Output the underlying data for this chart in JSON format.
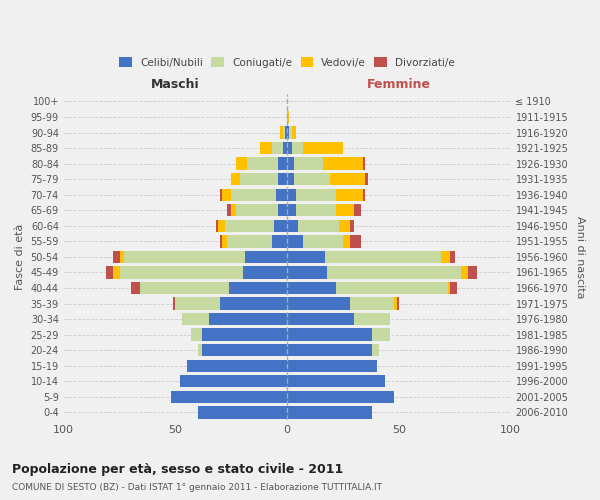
{
  "age_groups": [
    "0-4",
    "5-9",
    "10-14",
    "15-19",
    "20-24",
    "25-29",
    "30-34",
    "35-39",
    "40-44",
    "45-49",
    "50-54",
    "55-59",
    "60-64",
    "65-69",
    "70-74",
    "75-79",
    "80-84",
    "85-89",
    "90-94",
    "95-99",
    "100+"
  ],
  "birth_years": [
    "2006-2010",
    "2001-2005",
    "1996-2000",
    "1991-1995",
    "1986-1990",
    "1981-1985",
    "1976-1980",
    "1971-1975",
    "1966-1970",
    "1961-1965",
    "1956-1960",
    "1951-1955",
    "1946-1950",
    "1941-1945",
    "1936-1940",
    "1931-1935",
    "1926-1930",
    "1921-1925",
    "1916-1920",
    "1911-1915",
    "≤ 1910"
  ],
  "maschi": {
    "celibi": [
      40,
      52,
      48,
      45,
      38,
      38,
      35,
      30,
      26,
      20,
      19,
      7,
      6,
      4,
      5,
      4,
      4,
      2,
      1,
      0,
      0
    ],
    "coniugati": [
      0,
      0,
      0,
      0,
      2,
      5,
      12,
      20,
      40,
      55,
      54,
      20,
      22,
      19,
      20,
      17,
      14,
      5,
      1,
      0,
      0
    ],
    "vedovi": [
      0,
      0,
      0,
      0,
      0,
      0,
      0,
      0,
      0,
      3,
      2,
      2,
      3,
      2,
      4,
      4,
      5,
      5,
      1,
      0,
      0
    ],
    "divorziati": [
      0,
      0,
      0,
      0,
      0,
      0,
      0,
      1,
      4,
      3,
      3,
      1,
      1,
      2,
      1,
      0,
      0,
      0,
      0,
      0,
      0
    ]
  },
  "femmine": {
    "nubili": [
      38,
      48,
      44,
      40,
      38,
      38,
      30,
      28,
      22,
      18,
      17,
      7,
      5,
      4,
      4,
      3,
      3,
      2,
      1,
      0,
      0
    ],
    "coniugate": [
      0,
      0,
      0,
      0,
      3,
      8,
      16,
      20,
      50,
      60,
      52,
      18,
      18,
      18,
      18,
      16,
      13,
      5,
      1,
      0,
      0
    ],
    "vedove": [
      0,
      0,
      0,
      0,
      0,
      0,
      0,
      1,
      1,
      3,
      4,
      3,
      5,
      8,
      12,
      16,
      18,
      18,
      2,
      1,
      0
    ],
    "divorziate": [
      0,
      0,
      0,
      0,
      0,
      0,
      0,
      1,
      3,
      4,
      2,
      5,
      2,
      3,
      1,
      1,
      1,
      0,
      0,
      0,
      0
    ]
  },
  "colors": {
    "celibi": "#4472c4",
    "coniugati": "#c5d9a0",
    "vedovi": "#ffc000",
    "divorziati": "#c0504d"
  },
  "xlim": 100,
  "title": "Popolazione per età, sesso e stato civile - 2011",
  "subtitle": "COMUNE DI SESTO (BZ) - Dati ISTAT 1° gennaio 2011 - Elaborazione TUTTITALIA.IT",
  "ylabel_left": "Fasce di età",
  "ylabel_right": "Anni di nascita",
  "legend_labels": [
    "Celibi/Nubili",
    "Coniugati/e",
    "Vedovi/e",
    "Divorziati/e"
  ],
  "maschi_label": "Maschi",
  "femmine_label": "Femmine",
  "bg_color": "#f0f0f0"
}
